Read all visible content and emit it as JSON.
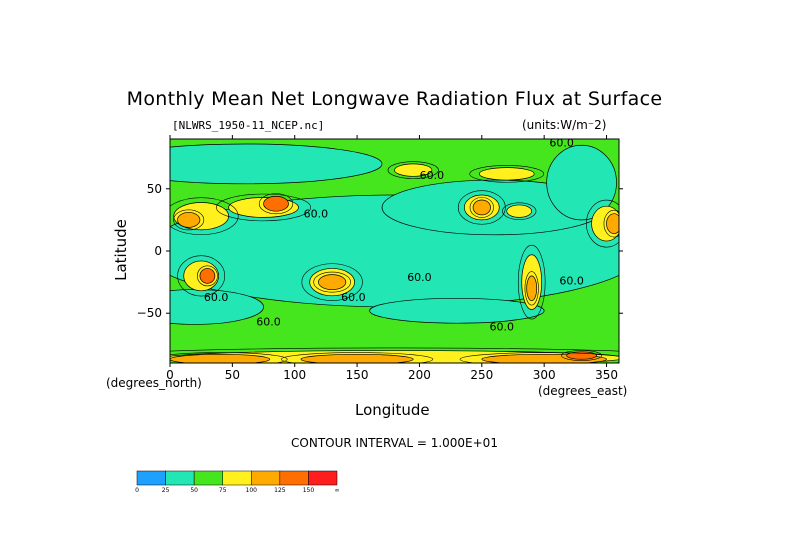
{
  "header": {
    "title": "Monthly Mean Net Longwave Radiation Flux at Surface",
    "file": "[NLWRS_1950-11_NCEP.nc]",
    "units": "(units:W/m⁻2)"
  },
  "axes": {
    "ylabel": "Latitude",
    "xlabel": "Longitude",
    "y_corner_label": "(degrees_north)",
    "x_corner_label": "(degrees_east)"
  },
  "footer": {
    "contour_interval": "CONTOUR INTERVAL = 1.000E+01"
  },
  "chart_data": {
    "type": "heatmap",
    "title": "Monthly Mean Net Longwave Radiation Flux at Surface",
    "xlabel": "Longitude",
    "ylabel": "Latitude",
    "xlim": [
      0,
      360
    ],
    "ylim": [
      -90,
      90
    ],
    "x_ticks": [
      0,
      50,
      100,
      150,
      200,
      250,
      300,
      350
    ],
    "y_ticks": [
      -50,
      0,
      50
    ],
    "contour_interval": 10,
    "contour_labels": [
      {
        "text": "60.0",
        "lon": 117,
        "lat": 27
      },
      {
        "text": "60.0",
        "lon": 200,
        "lat": -24
      },
      {
        "text": "60.0",
        "lon": 37,
        "lat": -40
      },
      {
        "text": "60.0",
        "lon": 147,
        "lat": -40
      },
      {
        "text": "60.0",
        "lon": 79,
        "lat": -60
      },
      {
        "text": "60.0",
        "lon": 266,
        "lat": -64
      },
      {
        "text": "60.0",
        "lon": 322,
        "lat": -27
      },
      {
        "text": "60.0",
        "lon": 210,
        "lat": 58
      },
      {
        "text": "60.0",
        "lon": 314,
        "lat": 84
      }
    ],
    "colorbar": {
      "levels": [
        "0",
        "25",
        "50",
        "75",
        "100",
        "125",
        "150",
        "∞"
      ],
      "colors": [
        "#1ea0ff",
        "#22e6b4",
        "#46e61e",
        "#fff01e",
        "#ffaa00",
        "#ff6e00",
        "#ff1e1e"
      ]
    },
    "regions": [
      {
        "level": 1,
        "lon": 180,
        "lat": 0,
        "rx": 200,
        "ry": 45
      },
      {
        "level": 1,
        "lon": 260,
        "lat": 35,
        "rx": 90,
        "ry": 22
      },
      {
        "level": 1,
        "lon": 60,
        "lat": 70,
        "rx": 110,
        "ry": 16
      },
      {
        "level": 1,
        "lon": 330,
        "lat": 55,
        "rx": 28,
        "ry": 30
      },
      {
        "level": 1,
        "lon": 20,
        "lat": -45,
        "rx": 55,
        "ry": 14
      },
      {
        "level": 1,
        "lon": 230,
        "lat": -48,
        "rx": 70,
        "ry": 10
      },
      {
        "level": 0,
        "lon": 255,
        "lat": 10,
        "rx": 10,
        "ry": 6
      },
      {
        "level": 0,
        "lon": 120,
        "lat": 78,
        "rx": 20,
        "ry": 5
      },
      {
        "level": 3,
        "lon": 25,
        "lat": 28,
        "rx": 22,
        "ry": 11
      },
      {
        "level": 4,
        "lon": 15,
        "lat": 25,
        "rx": 9,
        "ry": 6
      },
      {
        "level": 3,
        "lon": 75,
        "lat": 35,
        "rx": 28,
        "ry": 8
      },
      {
        "level": 5,
        "lon": 85,
        "lat": 38,
        "rx": 10,
        "ry": 6
      },
      {
        "level": 3,
        "lon": 250,
        "lat": 35,
        "rx": 14,
        "ry": 10
      },
      {
        "level": 4,
        "lon": 250,
        "lat": 35,
        "rx": 7,
        "ry": 6
      },
      {
        "level": 3,
        "lon": 280,
        "lat": 32,
        "rx": 10,
        "ry": 5
      },
      {
        "level": 3,
        "lon": 350,
        "lat": 22,
        "rx": 12,
        "ry": 14
      },
      {
        "level": 4,
        "lon": 356,
        "lat": 22,
        "rx": 6,
        "ry": 8
      },
      {
        "level": 3,
        "lon": 130,
        "lat": -25,
        "rx": 18,
        "ry": 11
      },
      {
        "level": 4,
        "lon": 130,
        "lat": -25,
        "rx": 11,
        "ry": 6
      },
      {
        "level": 3,
        "lon": 25,
        "lat": -20,
        "rx": 14,
        "ry": 12
      },
      {
        "level": 5,
        "lon": 30,
        "lat": -20,
        "rx": 6,
        "ry": 6
      },
      {
        "level": 3,
        "lon": 290,
        "lat": -25,
        "rx": 8,
        "ry": 22
      },
      {
        "level": 4,
        "lon": 290,
        "lat": -30,
        "rx": 4,
        "ry": 10
      },
      {
        "level": 3,
        "lon": 270,
        "lat": 62,
        "rx": 22,
        "ry": 5
      },
      {
        "level": 3,
        "lon": 195,
        "lat": 65,
        "rx": 15,
        "ry": 5
      },
      {
        "level": 3,
        "lon": 180,
        "lat": -86,
        "rx": 185,
        "ry": 6
      },
      {
        "level": 4,
        "lon": 40,
        "lat": -87,
        "rx": 40,
        "ry": 4
      },
      {
        "level": 4,
        "lon": 150,
        "lat": -87,
        "rx": 45,
        "ry": 4
      },
      {
        "level": 4,
        "lon": 300,
        "lat": -87,
        "rx": 50,
        "ry": 4
      },
      {
        "level": 5,
        "lon": 330,
        "lat": -84,
        "rx": 12,
        "ry": 3
      }
    ]
  }
}
